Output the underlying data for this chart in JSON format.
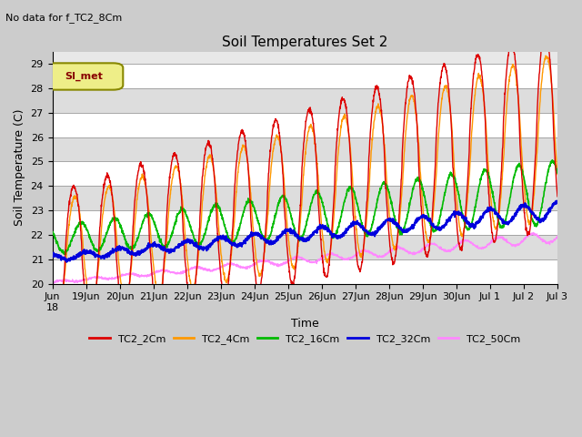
{
  "title": "Soil Temperatures Set 2",
  "subtitle": "No data for f_TC2_8Cm",
  "xlabel": "Time",
  "ylabel": "Soil Temperature (C)",
  "ylim": [
    20.0,
    29.5
  ],
  "yticks": [
    20.0,
    21.0,
    22.0,
    23.0,
    24.0,
    25.0,
    26.0,
    27.0,
    28.0,
    29.0
  ],
  "series": {
    "TC2_2Cm": {
      "color": "#dd0000",
      "lw": 1.0
    },
    "TC2_4Cm": {
      "color": "#ff9900",
      "lw": 1.0
    },
    "TC2_16Cm": {
      "color": "#00bb00",
      "lw": 1.2
    },
    "TC2_32Cm": {
      "color": "#0000dd",
      "lw": 1.5
    },
    "TC2_50Cm": {
      "color": "#ff88ff",
      "lw": 1.0
    }
  },
  "legend_box_text": "SI_met",
  "n_days": 15,
  "samples_per_day": 144
}
